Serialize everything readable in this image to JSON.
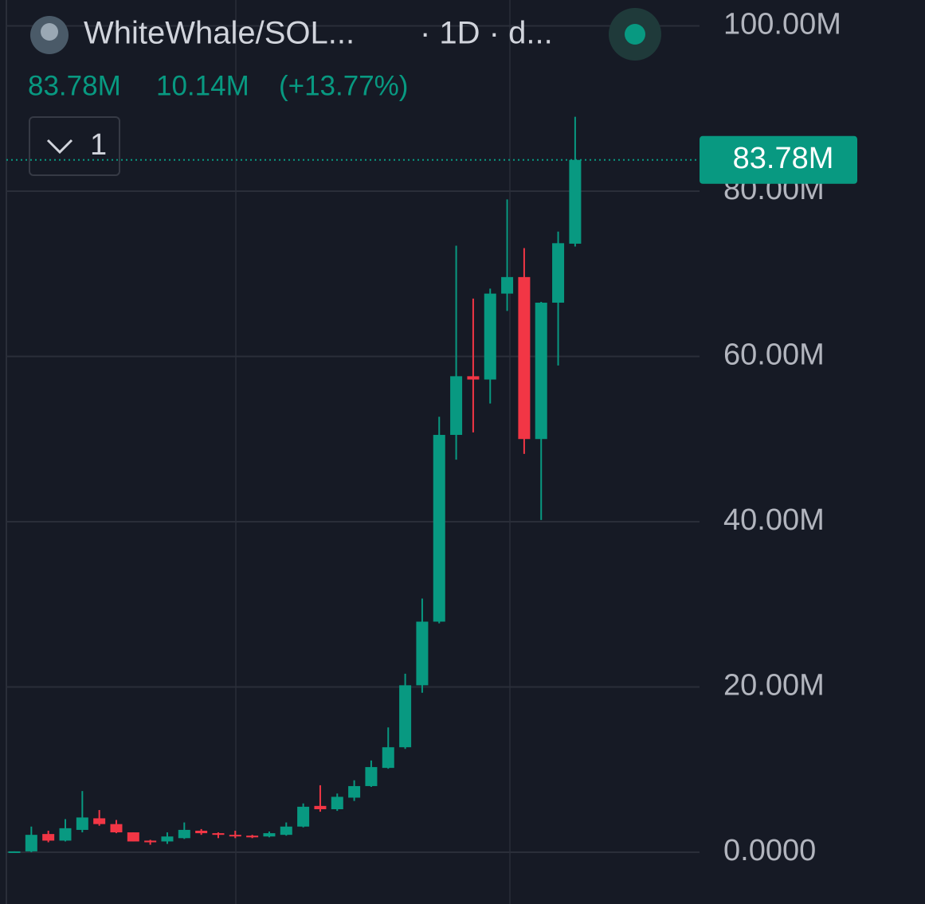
{
  "chart_data": {
    "type": "candlestick",
    "title": "WhiteWhale/SOL...",
    "subtitle": "· 1D · d...",
    "last_price": {
      "value": 83.78,
      "label": "83.78M"
    },
    "change": "10.14M",
    "change_pct": "(+13.77%)",
    "indicator_count": "1",
    "up_color": "#089981",
    "down_color": "#f23645",
    "ylim": [
      -6.27,
      103.13
    ],
    "yticks": [
      {
        "value": 0,
        "label": "0.0000"
      },
      {
        "value": 20,
        "label": "20.00M"
      },
      {
        "value": 40,
        "label": "40.00M"
      },
      {
        "value": 60,
        "label": "60.00M"
      },
      {
        "value": 80,
        "label": "80.00M"
      },
      {
        "value": 100,
        "label": "100.00M"
      }
    ],
    "grid": true,
    "open": [
      0,
      0.1,
      2.2,
      1.4,
      2.7,
      4.1,
      3.4,
      2.4,
      1.4,
      1.3,
      1.7,
      2.6,
      2.3,
      2.1,
      2.0,
      1.9,
      2.1,
      3.1,
      5.6,
      5.2,
      6.6,
      8.0,
      10.2,
      12.7,
      20.2,
      27.9,
      50.5,
      57.6,
      57.2,
      67.6,
      69.6,
      50.0,
      66.5,
      73.64
    ],
    "high": [
      0.1,
      3.1,
      2.6,
      4.0,
      7.4,
      5.1,
      3.9,
      2.4,
      1.5,
      2.4,
      3.6,
      2.8,
      2.4,
      2.6,
      2.1,
      2.5,
      3.6,
      5.9,
      8.1,
      7.1,
      8.7,
      11.1,
      15.1,
      21.6,
      30.7,
      52.7,
      73.4,
      67.0,
      68.2,
      79.0,
      73.1,
      66.6,
      75.1,
      89.0
    ],
    "low": [
      0,
      0,
      1.2,
      1.3,
      2.4,
      3.2,
      2.3,
      1.3,
      0.9,
      1.0,
      1.6,
      2.1,
      1.7,
      1.7,
      1.7,
      1.8,
      2.0,
      3.0,
      4.9,
      5.0,
      6.2,
      7.9,
      10.1,
      12.5,
      19.3,
      27.7,
      47.5,
      50.8,
      54.3,
      65.5,
      48.2,
      40.2,
      58.9,
      73.3
    ],
    "close": [
      0.1,
      2.1,
      1.4,
      2.9,
      4.2,
      3.4,
      2.4,
      1.3,
      1.2,
      1.9,
      2.7,
      2.3,
      2.1,
      2.0,
      1.8,
      2.3,
      3.1,
      5.5,
      5.2,
      6.7,
      8.0,
      10.3,
      12.7,
      20.2,
      27.9,
      50.5,
      57.6,
      57.2,
      67.6,
      69.6,
      50.0,
      66.5,
      73.7,
      83.78
    ]
  }
}
